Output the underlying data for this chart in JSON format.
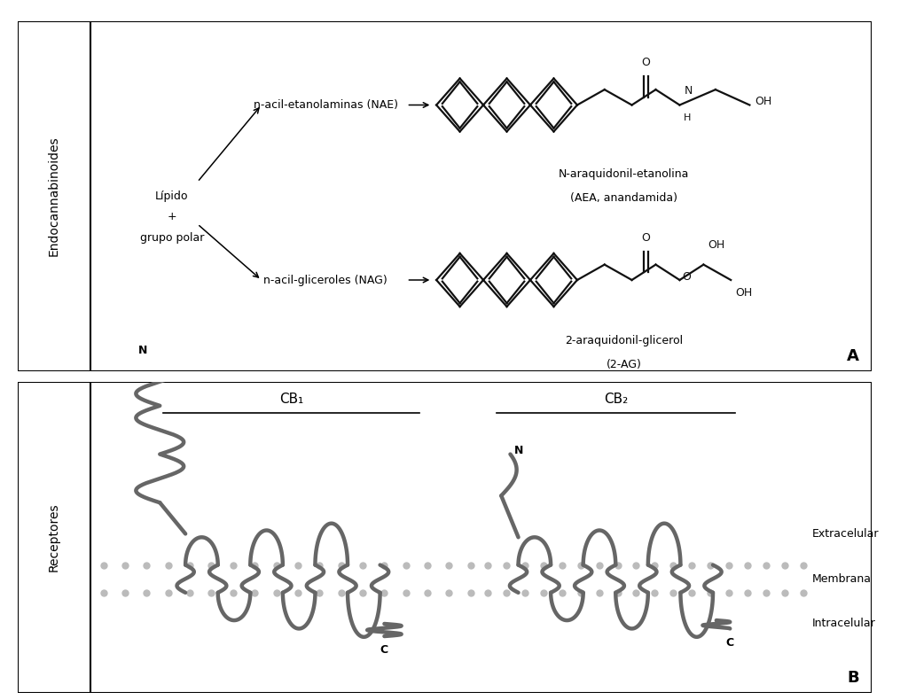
{
  "bg_color": "#ffffff",
  "border_color": "#000000",
  "structure_color": "#111111",
  "receptor_color": "#666666",
  "dot_color": "#bbbbbb",
  "panel_A": {
    "label": "A",
    "sidebar_label": "Endocannabinoides",
    "lipido_text_lines": [
      "Lípido",
      "+",
      "grupo polar"
    ],
    "nae_label": "n-acil-etanolaminas (NAE)",
    "nag_label": "n-acil-gliceroles (NAG)",
    "aea_name": "N-araquidonil-etanolina",
    "aea_abbr": "(AEA, anandamida)",
    "ag_name": "2-araquidonil-glicerol",
    "ag_abbr": "(2-AG)"
  },
  "panel_B": {
    "label": "B",
    "sidebar_label": "Receptores",
    "cb1_label": "CB₁",
    "cb2_label": "CB₂",
    "extracelular": "Extracelular",
    "membrana": "Membrana",
    "intracelular": "Intracelular"
  }
}
